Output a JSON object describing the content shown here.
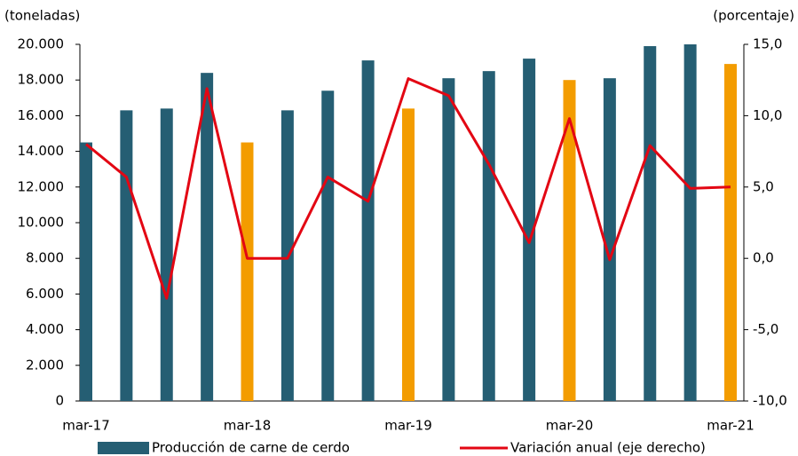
{
  "chart_data": {
    "type": "bar-line",
    "y_axis_label": "(toneladas)",
    "y2_axis_label": "(porcentaje)",
    "categories": [
      "mar-17",
      null,
      null,
      null,
      "mar-18",
      null,
      null,
      null,
      "mar-19",
      null,
      null,
      null,
      "mar-20",
      null,
      null,
      null,
      "mar-21"
    ],
    "series": [
      {
        "name": "Producción de carne de cerdo",
        "type": "bar",
        "color": "#255e73",
        "colors": [
          "#255e73",
          "#255e73",
          "#255e73",
          "#255e73",
          "#f39c00",
          "#255e73",
          "#255e73",
          "#255e73",
          "#f39c00",
          "#255e73",
          "#255e73",
          "#255e73",
          "#f39c00",
          "#255e73",
          "#255e73",
          "#255e73",
          "#f39c00"
        ],
        "values": [
          14500,
          16300,
          16400,
          18400,
          14500,
          16300,
          17400,
          19100,
          16400,
          18100,
          18500,
          19200,
          18000,
          18100,
          19900,
          20000,
          18900
        ]
      },
      {
        "name": "Variación anual (eje derecho)",
        "type": "line",
        "axis": "y2",
        "color": "#e30613",
        "values": [
          8.0,
          5.7,
          -2.8,
          11.9,
          0.0,
          0.0,
          5.7,
          4.0,
          12.6,
          11.4,
          6.6,
          1.1,
          9.8,
          -0.1,
          7.9,
          4.9,
          5.0
        ]
      }
    ],
    "ylim": [
      0,
      20000
    ],
    "yticks": [
      0,
      {
        "value": 2000,
        "label": "2.000"
      },
      {
        "value": 4000,
        "label": "4.000"
      },
      {
        "value": 6000,
        "label": "6.000"
      },
      {
        "value": 8000,
        "label": "8.000"
      },
      {
        "value": 10000,
        "label": "10.000"
      },
      {
        "value": 12000,
        "label": "12.000"
      },
      {
        "value": 14000,
        "label": "14.000"
      },
      {
        "value": 16000,
        "label": "16.000"
      },
      {
        "value": 18000,
        "label": "18.000"
      },
      {
        "value": 20000,
        "label": "20.000"
      }
    ],
    "y2lim": [
      -10,
      15
    ],
    "y2ticks": [
      {
        "value": -10,
        "label": "-10,0"
      },
      {
        "value": -5,
        "label": "-5,0"
      },
      {
        "value": 0,
        "label": "0,0"
      },
      {
        "value": 5,
        "label": "5,0"
      },
      {
        "value": 10,
        "label": "10,0"
      },
      {
        "value": 15,
        "label": "15,0"
      }
    ]
  }
}
